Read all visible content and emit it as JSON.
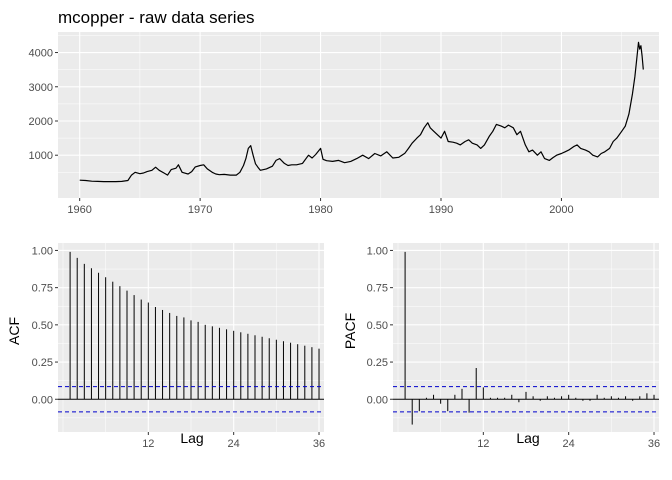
{
  "chart_data": [
    {
      "type": "line",
      "title": "mcopper - raw data series",
      "xlabel": "",
      "ylabel": "",
      "xlim": [
        1958.2,
        2008.1
      ],
      "ylim": [
        -250,
        4600
      ],
      "x_ticks": [
        1960,
        1970,
        1980,
        1990,
        2000
      ],
      "y_ticks": [
        1000,
        2000,
        3000,
        4000
      ],
      "grid": true,
      "series": [
        {
          "color": "#000000",
          "x": [
            1960.0,
            1960.5,
            1961.0,
            1961.5,
            1962.0,
            1962.5,
            1963.0,
            1963.5,
            1964.0,
            1964.3,
            1964.6,
            1965.0,
            1965.3,
            1965.6,
            1966.0,
            1966.3,
            1966.6,
            1967.0,
            1967.3,
            1967.6,
            1968.0,
            1968.2,
            1968.5,
            1969.0,
            1969.3,
            1969.6,
            1970.0,
            1970.3,
            1970.6,
            1971.0,
            1971.3,
            1971.6,
            1972.0,
            1972.5,
            1973.0,
            1973.3,
            1973.6,
            1973.8,
            1974.0,
            1974.2,
            1974.4,
            1974.6,
            1974.8,
            1975.0,
            1975.5,
            1976.0,
            1976.3,
            1976.6,
            1977.0,
            1977.3,
            1977.6,
            1978.0,
            1978.5,
            1979.0,
            1979.3,
            1979.6,
            1980.0,
            1980.2,
            1980.5,
            1981.0,
            1981.5,
            1982.0,
            1982.5,
            1983.0,
            1983.5,
            1984.0,
            1984.5,
            1985.0,
            1985.5,
            1986.0,
            1986.5,
            1987.0,
            1987.3,
            1987.6,
            1988.0,
            1988.3,
            1988.6,
            1988.9,
            1989.1,
            1989.4,
            1989.7,
            1990.0,
            1990.3,
            1990.6,
            1991.0,
            1991.3,
            1991.6,
            1992.0,
            1992.3,
            1992.6,
            1993.0,
            1993.3,
            1993.6,
            1994.0,
            1994.3,
            1994.6,
            1995.0,
            1995.3,
            1995.6,
            1996.0,
            1996.3,
            1996.6,
            1997.0,
            1997.3,
            1997.6,
            1998.0,
            1998.3,
            1998.6,
            1999.0,
            1999.3,
            1999.6,
            2000.0,
            2000.3,
            2000.6,
            2001.0,
            2001.3,
            2001.6,
            2002.0,
            2002.3,
            2002.6,
            2003.0,
            2003.3,
            2003.6,
            2004.0,
            2004.3,
            2004.6,
            2005.0,
            2005.3,
            2005.6,
            2005.9,
            2006.1,
            2006.25,
            2006.4,
            2006.5,
            2006.6,
            2006.7,
            2006.8
          ],
          "y": [
            270,
            260,
            240,
            235,
            230,
            230,
            230,
            235,
            260,
            420,
            500,
            460,
            480,
            520,
            560,
            650,
            560,
            480,
            420,
            580,
            620,
            720,
            500,
            450,
            520,
            660,
            700,
            720,
            600,
            500,
            450,
            430,
            440,
            420,
            420,
            500,
            700,
            900,
            1200,
            1280,
            1000,
            750,
            650,
            560,
            600,
            680,
            850,
            900,
            760,
            700,
            720,
            720,
            760,
            1000,
            920,
            1020,
            1200,
            880,
            840,
            820,
            850,
            780,
            820,
            900,
            1000,
            900,
            1050,
            980,
            1100,
            920,
            940,
            1060,
            1200,
            1350,
            1500,
            1600,
            1800,
            1950,
            1800,
            1700,
            1600,
            1500,
            1700,
            1400,
            1380,
            1350,
            1300,
            1400,
            1450,
            1350,
            1300,
            1200,
            1300,
            1550,
            1700,
            1900,
            1850,
            1800,
            1880,
            1800,
            1600,
            1700,
            1300,
            1100,
            1150,
            1000,
            1100,
            900,
            850,
            930,
            1000,
            1050,
            1100,
            1150,
            1250,
            1300,
            1200,
            1150,
            1100,
            1000,
            950,
            1050,
            1100,
            1200,
            1400,
            1500,
            1700,
            1850,
            2200,
            2800,
            3300,
            3800,
            4300,
            4100,
            4200,
            3900,
            3500
          ]
        }
      ]
    },
    {
      "type": "bar",
      "ylabel": "ACF",
      "xlabel": "Lag",
      "xlim": [
        -0.7,
        36.7
      ],
      "ylim": [
        -0.22,
        1.05
      ],
      "x_ticks": [
        12,
        24,
        36
      ],
      "y_ticks": [
        0.0,
        0.25,
        0.5,
        0.75,
        1.0
      ],
      "confidence_bound": 0.085,
      "lags": [
        1,
        2,
        3,
        4,
        5,
        6,
        7,
        8,
        9,
        10,
        11,
        12,
        13,
        14,
        15,
        16,
        17,
        18,
        19,
        20,
        21,
        22,
        23,
        24,
        25,
        26,
        27,
        28,
        29,
        30,
        31,
        32,
        33,
        34,
        35,
        36
      ],
      "values": [
        0.99,
        0.95,
        0.91,
        0.88,
        0.85,
        0.82,
        0.79,
        0.76,
        0.73,
        0.7,
        0.67,
        0.65,
        0.62,
        0.6,
        0.58,
        0.56,
        0.55,
        0.53,
        0.52,
        0.5,
        0.49,
        0.48,
        0.47,
        0.46,
        0.45,
        0.44,
        0.43,
        0.42,
        0.41,
        0.4,
        0.39,
        0.38,
        0.37,
        0.36,
        0.35,
        0.34
      ]
    },
    {
      "type": "bar",
      "ylabel": "PACF",
      "xlabel": "Lag",
      "xlim": [
        -0.7,
        36.7
      ],
      "ylim": [
        -0.22,
        1.05
      ],
      "x_ticks": [
        12,
        24,
        36
      ],
      "y_ticks": [
        0.0,
        0.25,
        0.5,
        0.75,
        1.0
      ],
      "confidence_bound": 0.085,
      "lags": [
        1,
        2,
        3,
        4,
        5,
        6,
        7,
        8,
        9,
        10,
        11,
        12,
        13,
        14,
        15,
        16,
        17,
        18,
        19,
        20,
        21,
        22,
        23,
        24,
        25,
        26,
        27,
        28,
        29,
        30,
        31,
        32,
        33,
        34,
        35,
        36
      ],
      "values": [
        0.99,
        -0.17,
        -0.08,
        0.01,
        0.03,
        -0.03,
        -0.08,
        0.03,
        0.07,
        -0.09,
        0.21,
        0.08,
        0.01,
        0.01,
        0.01,
        0.03,
        -0.02,
        0.05,
        0.02,
        -0.01,
        0.02,
        0.01,
        0.02,
        0.03,
        0.01,
        -0.01,
        -0.01,
        0.03,
        0.01,
        0.02,
        0.01,
        0.02,
        -0.01,
        0.02,
        0.04,
        0.03
      ]
    }
  ]
}
